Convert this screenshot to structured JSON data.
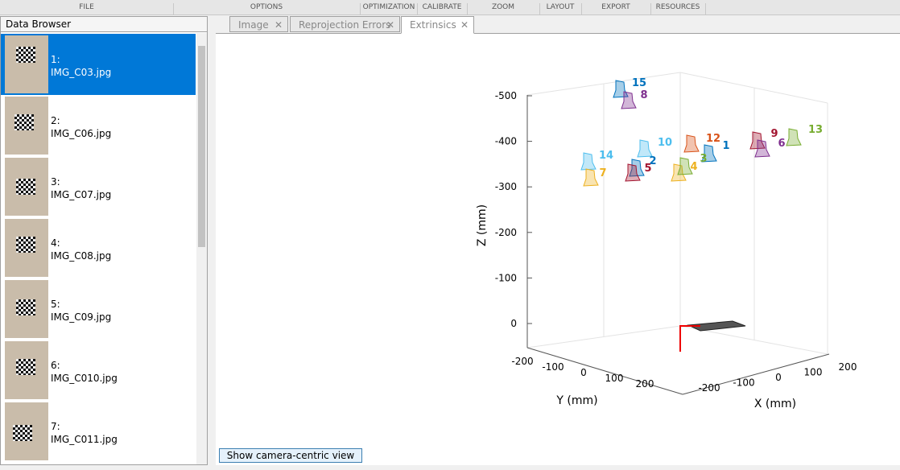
{
  "toolstrip": {
    "sections": [
      "FILE",
      "OPTIONS",
      "OPTIMIZATION",
      "CALIBRATE",
      "ZOOM",
      "LAYOUT",
      "EXPORT",
      "RESOURCES"
    ]
  },
  "data_browser": {
    "title": "Data Browser",
    "selected": 0,
    "items": [
      {
        "index": "1:",
        "file": "IMG_C03.jpg"
      },
      {
        "index": "2:",
        "file": "IMG_C06.jpg"
      },
      {
        "index": "3:",
        "file": "IMG_C07.jpg"
      },
      {
        "index": "4:",
        "file": "IMG_C08.jpg"
      },
      {
        "index": "5:",
        "file": "IMG_C09.jpg"
      },
      {
        "index": "6:",
        "file": "IMG_C010.jpg"
      },
      {
        "index": "7:",
        "file": "IMG_C011.jpg"
      }
    ]
  },
  "tabs": {
    "active": 2,
    "labels": [
      "Image",
      "Reprojection Errors",
      "Extrinsics"
    ]
  },
  "plot": {
    "z_label": "Z (mm)",
    "y_label": "Y (mm)",
    "x_label": "X (mm)",
    "z_ticks": [
      -500,
      -400,
      -300,
      -200,
      -100,
      0
    ],
    "y_ticks": [
      -200,
      -100,
      0,
      100,
      200
    ],
    "x_ticks": [
      -200,
      -100,
      0,
      100,
      200
    ],
    "cameras": [
      {
        "label": "15",
        "color": "#0072bd"
      },
      {
        "label": "8",
        "color": "#7e2f8e"
      },
      {
        "label": "10",
        "color": "#4dbeee"
      },
      {
        "label": "12",
        "color": "#d95319"
      },
      {
        "label": "1",
        "color": "#0072bd"
      },
      {
        "label": "14",
        "color": "#4dbeee"
      },
      {
        "label": "2",
        "color": "#0072bd"
      },
      {
        "label": "7",
        "color": "#edb120"
      },
      {
        "label": "5",
        "color": "#a2142f"
      },
      {
        "label": "4",
        "color": "#edb120"
      },
      {
        "label": "3",
        "color": "#77ac30"
      },
      {
        "label": "9",
        "color": "#a2142f"
      },
      {
        "label": "6",
        "color": "#7e2f8e"
      },
      {
        "label": "13",
        "color": "#77ac30"
      }
    ]
  },
  "button": "Show camera-centric view"
}
